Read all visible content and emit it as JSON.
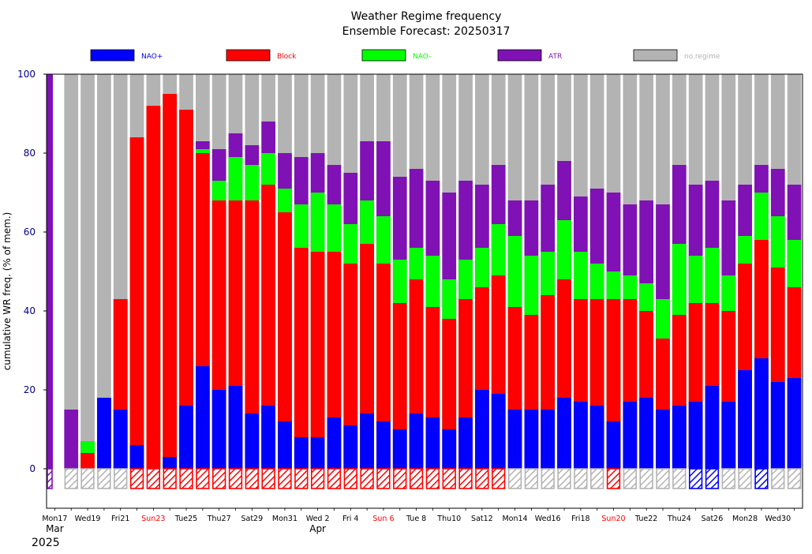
{
  "chart_data": {
    "type": "bar",
    "stacked": true,
    "cumulative": true,
    "title": "Weather Regime frequency",
    "subtitle": "Ensemble Forecast: 20250317",
    "ylabel": "cumulative WR freq. (% of mem.)",
    "ylim": [
      -10,
      100
    ],
    "yticks": [
      0,
      20,
      40,
      60,
      80,
      100
    ],
    "grid": false,
    "legend_position": "top",
    "legend": [
      {
        "name": "NAO+",
        "color": "#0000ff"
      },
      {
        "name": "Block",
        "color": "#ff0000"
      },
      {
        "name": "NAO-",
        "color": "#00ff00"
      },
      {
        "name": "ATR",
        "color": "#7f11b5"
      },
      {
        "name": "no.regime",
        "color": "#b3b3b3"
      }
    ],
    "xtick_labels": [
      {
        "index": 0,
        "label": "Mon17",
        "color": "#000000"
      },
      {
        "index": 2,
        "label": "Wed19",
        "color": "#000000"
      },
      {
        "index": 4,
        "label": "Fri21",
        "color": "#000000"
      },
      {
        "index": 6,
        "label": "Sun23",
        "color": "#ff0000"
      },
      {
        "index": 8,
        "label": "Tue25",
        "color": "#000000"
      },
      {
        "index": 10,
        "label": "Thu27",
        "color": "#000000"
      },
      {
        "index": 12,
        "label": "Sat29",
        "color": "#000000"
      },
      {
        "index": 14,
        "label": "Mon31",
        "color": "#000000"
      },
      {
        "index": 16,
        "label": "Wed 2",
        "color": "#000000"
      },
      {
        "index": 18,
        "label": "Fri 4",
        "color": "#000000"
      },
      {
        "index": 20,
        "label": "Sun 6",
        "color": "#ff0000"
      },
      {
        "index": 22,
        "label": "Tue 8",
        "color": "#000000"
      },
      {
        "index": 24,
        "label": "Thu10",
        "color": "#000000"
      },
      {
        "index": 26,
        "label": "Sat12",
        "color": "#000000"
      },
      {
        "index": 28,
        "label": "Mon14",
        "color": "#000000"
      },
      {
        "index": 30,
        "label": "Wed16",
        "color": "#000000"
      },
      {
        "index": 32,
        "label": "Fri18",
        "color": "#000000"
      },
      {
        "index": 34,
        "label": "Sun20",
        "color": "#ff0000"
      },
      {
        "index": 36,
        "label": "Tue22",
        "color": "#000000"
      },
      {
        "index": 38,
        "label": "Thu24",
        "color": "#000000"
      },
      {
        "index": 40,
        "label": "Sat26",
        "color": "#000000"
      },
      {
        "index": 42,
        "label": "Mon28",
        "color": "#000000"
      },
      {
        "index": 44,
        "label": "Wed30",
        "color": "#000000"
      }
    ],
    "month_labels": [
      {
        "index": 0,
        "label": "Mar"
      },
      {
        "index": 16,
        "label": "Apr"
      }
    ],
    "year_label": "2025",
    "bars": [
      {
        "nao_pos": 0,
        "block": 0,
        "nao_neg": 0,
        "atr": 100,
        "dominant": "ATR"
      },
      {
        "nao_pos": 0,
        "block": 0,
        "nao_neg": 0,
        "atr": 15,
        "dominant": "no.regime"
      },
      {
        "nao_pos": 0,
        "block": 4,
        "nao_neg": 7,
        "atr": 7,
        "dominant": "no.regime"
      },
      {
        "nao_pos": 18,
        "block": 18,
        "nao_neg": 18,
        "atr": 18,
        "dominant": "no.regime"
      },
      {
        "nao_pos": 15,
        "block": 43,
        "nao_neg": 43,
        "atr": 43,
        "dominant": "no.regime"
      },
      {
        "nao_pos": 6,
        "block": 84,
        "nao_neg": 84,
        "atr": 84,
        "dominant": "Block"
      },
      {
        "nao_pos": 0,
        "block": 92,
        "nao_neg": 92,
        "atr": 92,
        "dominant": "Block"
      },
      {
        "nao_pos": 3,
        "block": 95,
        "nao_neg": 95,
        "atr": 95,
        "dominant": "Block"
      },
      {
        "nao_pos": 16,
        "block": 91,
        "nao_neg": 91,
        "atr": 91,
        "dominant": "Block"
      },
      {
        "nao_pos": 26,
        "block": 80,
        "nao_neg": 81,
        "atr": 83,
        "dominant": "Block"
      },
      {
        "nao_pos": 20,
        "block": 68,
        "nao_neg": 73,
        "atr": 81,
        "dominant": "Block"
      },
      {
        "nao_pos": 21,
        "block": 68,
        "nao_neg": 79,
        "atr": 85,
        "dominant": "Block"
      },
      {
        "nao_pos": 14,
        "block": 68,
        "nao_neg": 77,
        "atr": 82,
        "dominant": "Block"
      },
      {
        "nao_pos": 16,
        "block": 72,
        "nao_neg": 80,
        "atr": 88,
        "dominant": "Block"
      },
      {
        "nao_pos": 12,
        "block": 65,
        "nao_neg": 71,
        "atr": 80,
        "dominant": "Block"
      },
      {
        "nao_pos": 8,
        "block": 56,
        "nao_neg": 67,
        "atr": 79,
        "dominant": "Block"
      },
      {
        "nao_pos": 8,
        "block": 55,
        "nao_neg": 70,
        "atr": 80,
        "dominant": "Block"
      },
      {
        "nao_pos": 13,
        "block": 55,
        "nao_neg": 67,
        "atr": 77,
        "dominant": "Block"
      },
      {
        "nao_pos": 11,
        "block": 52,
        "nao_neg": 62,
        "atr": 75,
        "dominant": "Block"
      },
      {
        "nao_pos": 14,
        "block": 57,
        "nao_neg": 68,
        "atr": 83,
        "dominant": "Block"
      },
      {
        "nao_pos": 12,
        "block": 52,
        "nao_neg": 64,
        "atr": 83,
        "dominant": "Block"
      },
      {
        "nao_pos": 10,
        "block": 42,
        "nao_neg": 53,
        "atr": 74,
        "dominant": "Block"
      },
      {
        "nao_pos": 14,
        "block": 48,
        "nao_neg": 56,
        "atr": 76,
        "dominant": "Block"
      },
      {
        "nao_pos": 13,
        "block": 41,
        "nao_neg": 54,
        "atr": 73,
        "dominant": "Block"
      },
      {
        "nao_pos": 10,
        "block": 38,
        "nao_neg": 48,
        "atr": 70,
        "dominant": "Block"
      },
      {
        "nao_pos": 13,
        "block": 43,
        "nao_neg": 53,
        "atr": 73,
        "dominant": "Block"
      },
      {
        "nao_pos": 20,
        "block": 46,
        "nao_neg": 56,
        "atr": 72,
        "dominant": "Block"
      },
      {
        "nao_pos": 19,
        "block": 49,
        "nao_neg": 62,
        "atr": 77,
        "dominant": "Block"
      },
      {
        "nao_pos": 15,
        "block": 41,
        "nao_neg": 59,
        "atr": 68,
        "dominant": "no.regime"
      },
      {
        "nao_pos": 15,
        "block": 39,
        "nao_neg": 54,
        "atr": 68,
        "dominant": "no.regime"
      },
      {
        "nao_pos": 15,
        "block": 44,
        "nao_neg": 55,
        "atr": 72,
        "dominant": "no.regime"
      },
      {
        "nao_pos": 18,
        "block": 48,
        "nao_neg": 63,
        "atr": 78,
        "dominant": "no.regime"
      },
      {
        "nao_pos": 17,
        "block": 43,
        "nao_neg": 55,
        "atr": 69,
        "dominant": "no.regime"
      },
      {
        "nao_pos": 16,
        "block": 43,
        "nao_neg": 52,
        "atr": 71,
        "dominant": "no.regime"
      },
      {
        "nao_pos": 12,
        "block": 43,
        "nao_neg": 50,
        "atr": 70,
        "dominant": "Block"
      },
      {
        "nao_pos": 17,
        "block": 43,
        "nao_neg": 49,
        "atr": 67,
        "dominant": "no.regime"
      },
      {
        "nao_pos": 18,
        "block": 40,
        "nao_neg": 47,
        "atr": 68,
        "dominant": "no.regime"
      },
      {
        "nao_pos": 15,
        "block": 33,
        "nao_neg": 43,
        "atr": 67,
        "dominant": "no.regime"
      },
      {
        "nao_pos": 16,
        "block": 39,
        "nao_neg": 57,
        "atr": 77,
        "dominant": "no.regime"
      },
      {
        "nao_pos": 17,
        "block": 42,
        "nao_neg": 54,
        "atr": 72,
        "dominant": "NAO+"
      },
      {
        "nao_pos": 21,
        "block": 42,
        "nao_neg": 56,
        "atr": 73,
        "dominant": "NAO+"
      },
      {
        "nao_pos": 17,
        "block": 40,
        "nao_neg": 49,
        "atr": 68,
        "dominant": "no.regime"
      },
      {
        "nao_pos": 25,
        "block": 52,
        "nao_neg": 59,
        "atr": 72,
        "dominant": "no.regime"
      },
      {
        "nao_pos": 28,
        "block": 58,
        "nao_neg": 70,
        "atr": 77,
        "dominant": "NAO+"
      },
      {
        "nao_pos": 22,
        "block": 51,
        "nao_neg": 64,
        "atr": 76,
        "dominant": "no.regime"
      },
      {
        "nao_pos": 23,
        "block": 46,
        "nao_neg": 58,
        "atr": 72,
        "dominant": "no.regime"
      }
    ]
  }
}
